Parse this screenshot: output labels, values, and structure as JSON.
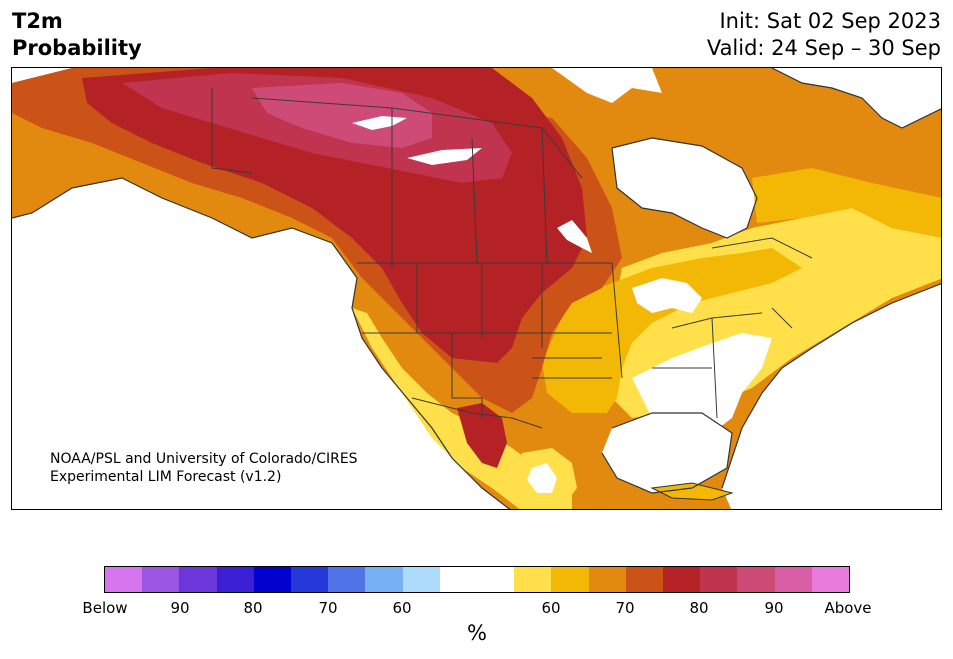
{
  "header": {
    "title_line1": "T2m",
    "title_line2": "Probability",
    "init": "Init: Sat 02 Sep 2023",
    "valid": "Valid: 24 Sep – 30 Sep"
  },
  "map": {
    "region": "North America",
    "variable": "T2m",
    "credit_line1": "NOAA/PSL and University of Colorado/CIRES",
    "credit_line2": "Experimental LIM Forecast (v1.2)"
  },
  "colorbar": {
    "unit": "%",
    "colors": [
      "#d675ed",
      "#9a55e3",
      "#6b37da",
      "#3a1fd5",
      "#0202ce",
      "#2539da",
      "#5174e8",
      "#78b1f3",
      "#acdbfc",
      "#ffffff",
      "#ffffff",
      "#ffe04a",
      "#f3b705",
      "#e2890f",
      "#cb5318",
      "#b42225",
      "#c13450",
      "#ce4b78",
      "#d85ea6",
      "#e87bdc"
    ],
    "ticks": [
      "Below",
      "90",
      "80",
      "70",
      "60",
      "60",
      "70",
      "80",
      "90",
      "Above"
    ]
  }
}
